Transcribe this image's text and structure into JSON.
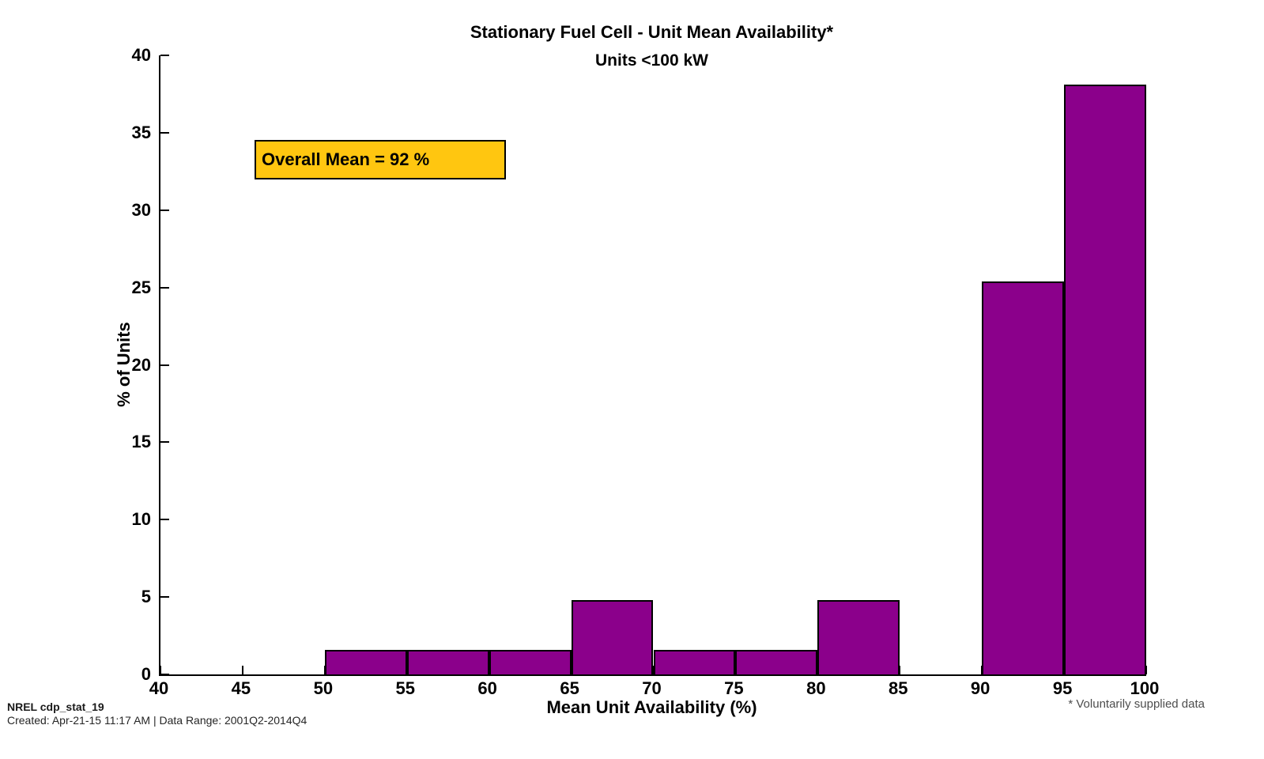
{
  "header": {
    "title": "Stationary Fuel Cell - Unit Mean Availability*",
    "subtitle": "Units <100 kW"
  },
  "annotation": {
    "label": "Overall Mean = 92 %",
    "bg_color": "#FFC610",
    "border_color": "#000000"
  },
  "footer": {
    "doc_id": "NREL cdp_stat_19",
    "created_line": "Created: Apr-21-15 11:17 AM | Data Range: 2001Q2-2014Q4",
    "note": "* Voluntarily supplied data"
  },
  "chart_data": {
    "type": "bar",
    "histogram": true,
    "title": "Stationary Fuel Cell - Unit Mean Availability*",
    "subtitle": "Units <100 kW",
    "xlabel": "Mean Unit Availability (%)",
    "ylabel": "% of Units",
    "xlim": [
      40,
      100
    ],
    "ylim": [
      0,
      40
    ],
    "x_ticks": [
      40,
      45,
      50,
      55,
      60,
      65,
      70,
      75,
      80,
      85,
      90,
      95,
      100
    ],
    "y_ticks": [
      0,
      5,
      10,
      15,
      20,
      25,
      30,
      35,
      40
    ],
    "bin_width": 5,
    "bin_starts": [
      50,
      55,
      60,
      65,
      70,
      75,
      80,
      85,
      90,
      95
    ],
    "categories": [
      "50-55",
      "55-60",
      "60-65",
      "65-70",
      "70-75",
      "75-80",
      "80-85",
      "85-90",
      "90-95",
      "95-100"
    ],
    "values": [
      1.6,
      1.6,
      1.6,
      4.8,
      1.6,
      1.6,
      4.8,
      0,
      25.4,
      38.1
    ],
    "bar_color": "#8B008B",
    "bar_edge_color": "#000000",
    "annotation": "Overall Mean = 92 %",
    "overall_mean_percent": 92,
    "grid": false,
    "legend": null
  }
}
